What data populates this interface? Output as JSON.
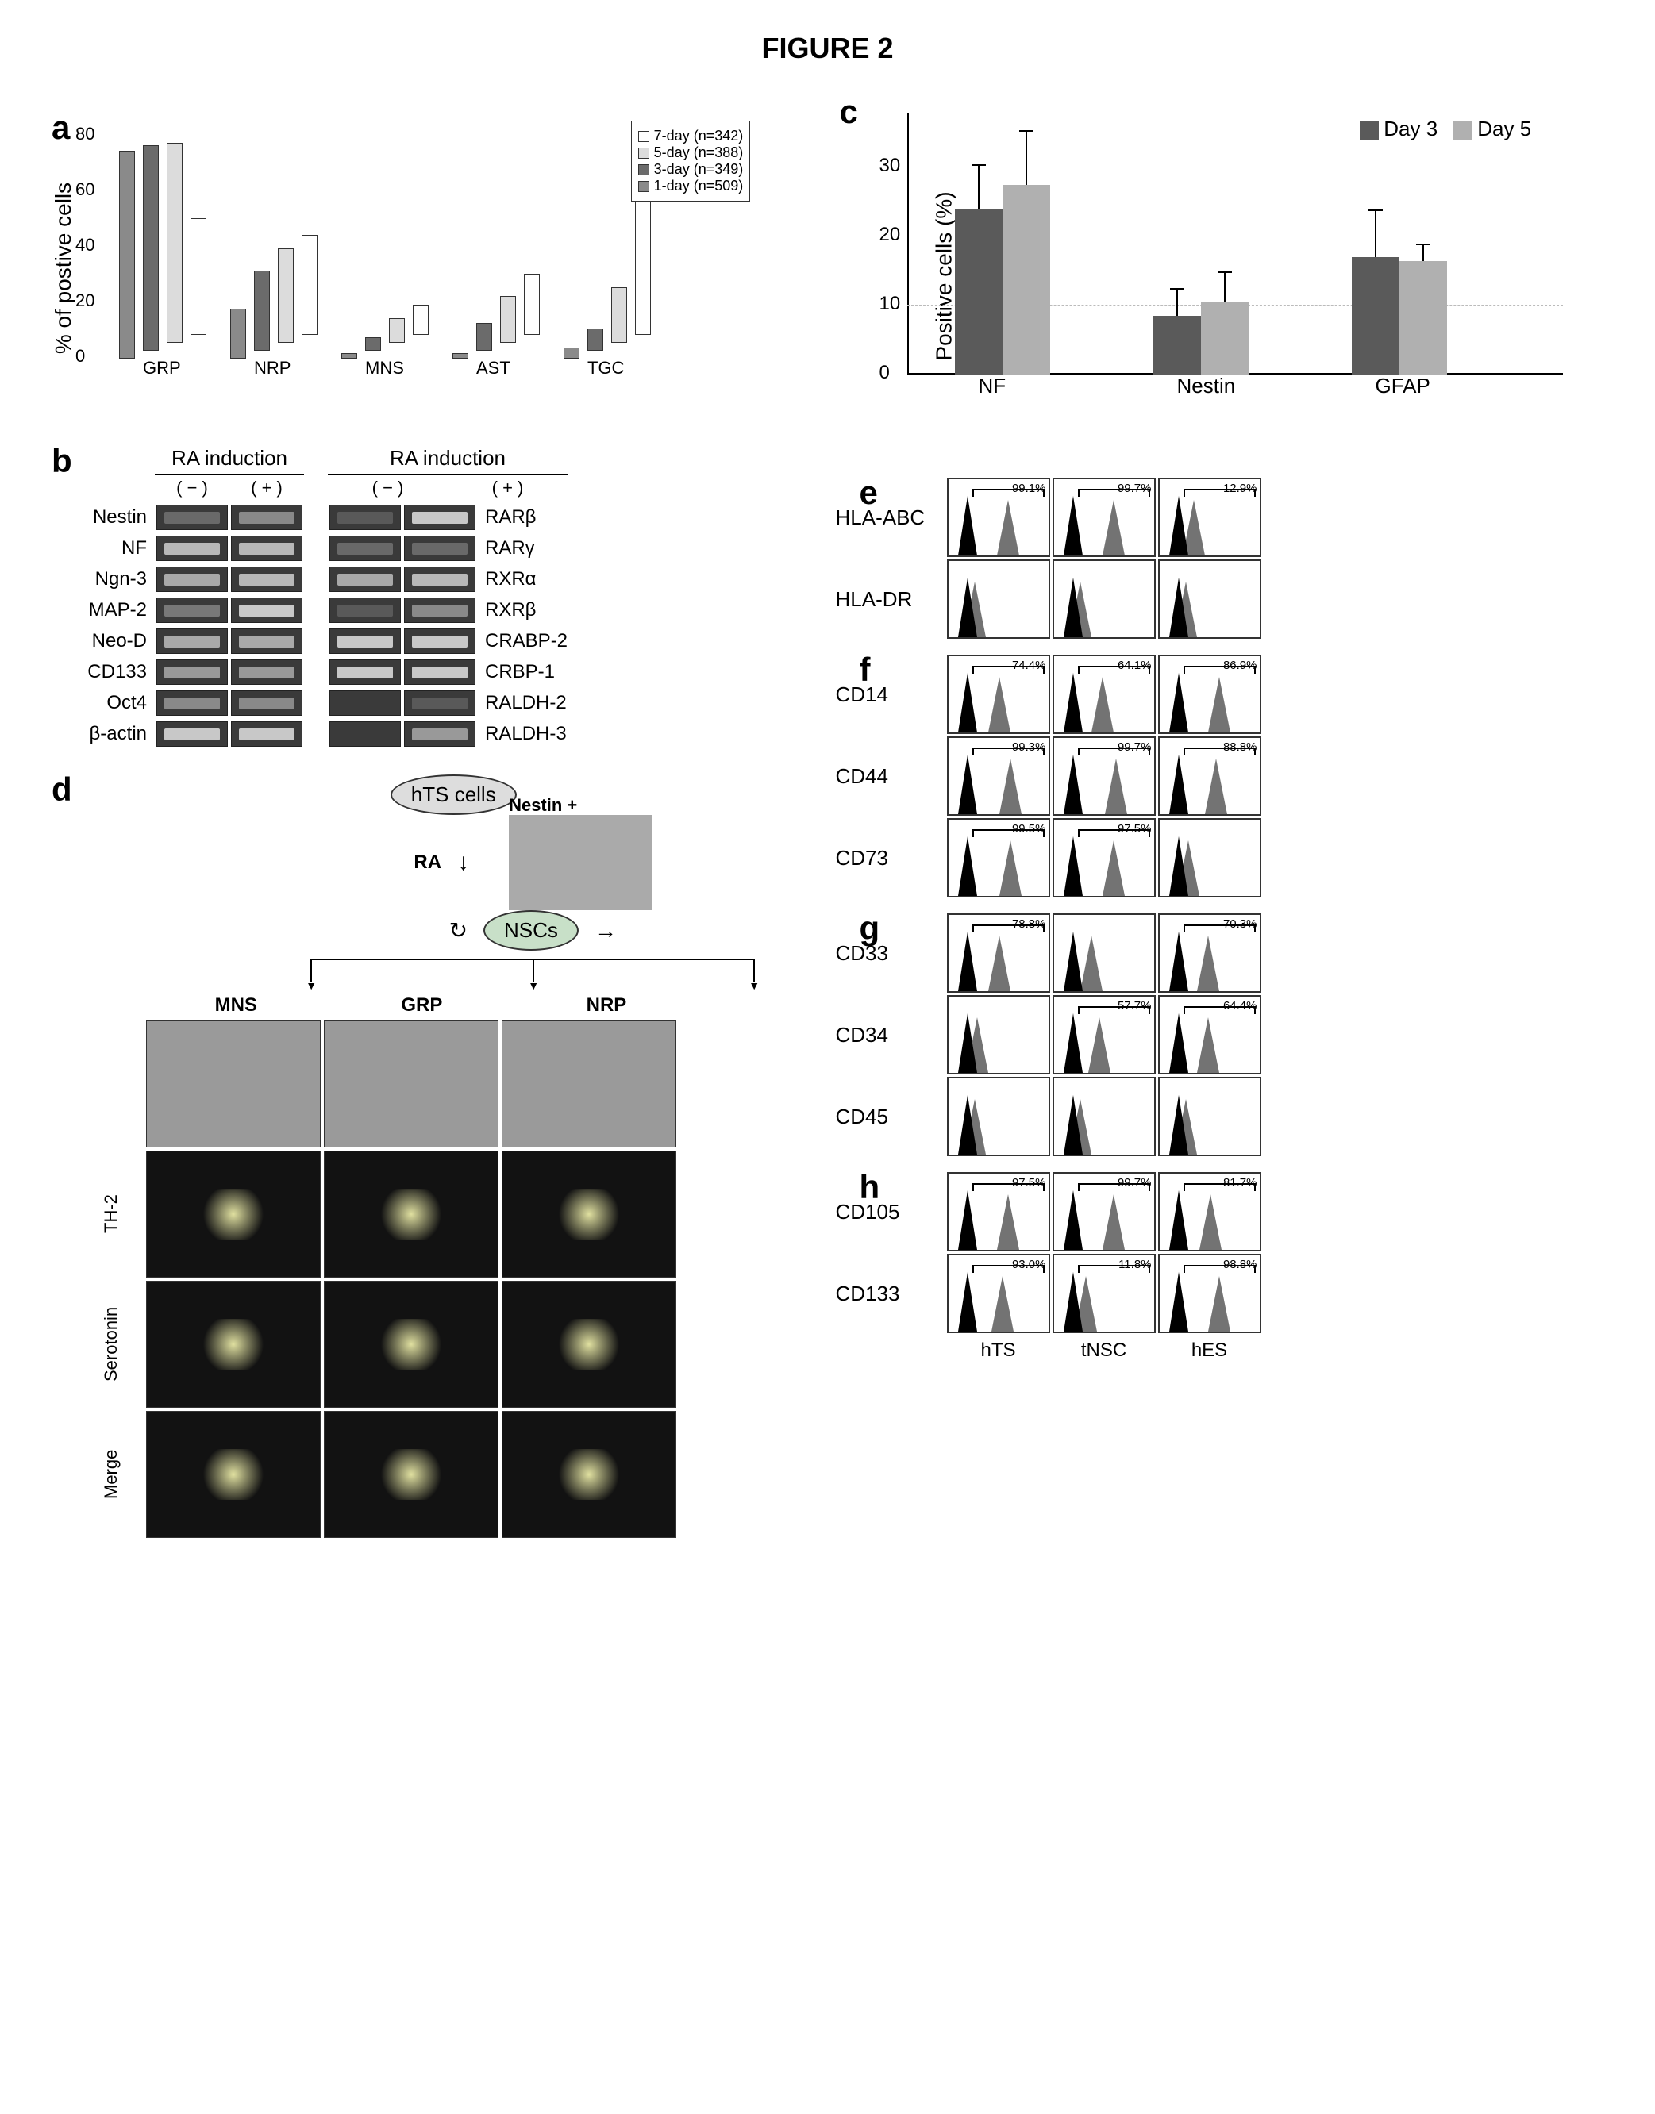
{
  "title": "FIGURE 2",
  "panel_a": {
    "type": "bar3d",
    "ylabel": "% of postive cells",
    "yticks": [
      0,
      20,
      40,
      60,
      80
    ],
    "ylim": [
      0,
      80
    ],
    "categories": [
      "GRP",
      "NRP",
      "MNS",
      "AST",
      "TGC"
    ],
    "legend": [
      {
        "label": "7-day (n=342)",
        "color": "#ffffff"
      },
      {
        "label": "5-day (n=388)",
        "color": "#dcdcdc"
      },
      {
        "label": "3-day (n=349)",
        "color": "#6b6b6b"
      },
      {
        "label": "1-day (n=509)",
        "color": "#8a8a8a"
      }
    ],
    "series": {
      "1-day": {
        "color": "#8a8a8a",
        "values": [
          75,
          18,
          2,
          2,
          4
        ]
      },
      "3-day": {
        "color": "#6b6b6b",
        "values": [
          74,
          29,
          5,
          10,
          8
        ]
      },
      "5-day": {
        "color": "#dcdcdc",
        "values": [
          72,
          34,
          9,
          17,
          20
        ]
      },
      "7-day": {
        "color": "#ffffff",
        "values": [
          42,
          36,
          11,
          22,
          58
        ]
      }
    }
  },
  "panel_b": {
    "header": "RA induction",
    "conditions": [
      "( − )",
      "( + )"
    ],
    "left_genes": [
      "Nestin",
      "NF",
      "Ngn-3",
      "MAP-2",
      "Neo-D",
      "CD133",
      "Oct4",
      "β-actin"
    ],
    "right_genes": [
      "RARβ",
      "RARγ",
      "RXRα",
      "RXRβ",
      "CRABP-2",
      "CRBP-1",
      "RALDH-2",
      "RALDH-3"
    ],
    "left_intensity": [
      [
        0.3,
        0.5
      ],
      [
        0.8,
        0.8
      ],
      [
        0.7,
        0.8
      ],
      [
        0.4,
        0.9
      ],
      [
        0.7,
        0.7
      ],
      [
        0.6,
        0.6
      ],
      [
        0.5,
        0.5
      ],
      [
        0.9,
        0.9
      ]
    ],
    "right_intensity": [
      [
        0.2,
        0.9
      ],
      [
        0.3,
        0.3
      ],
      [
        0.7,
        0.8
      ],
      [
        0.2,
        0.5
      ],
      [
        0.9,
        0.9
      ],
      [
        0.9,
        0.9
      ],
      [
        0.1,
        0.2
      ],
      [
        0.1,
        0.6
      ]
    ],
    "band_bg": "#3a3a3a",
    "band_signal": "#d8d8d8"
  },
  "panel_c": {
    "type": "bar",
    "ylabel": "Positive cells (%)",
    "yticks": [
      0,
      10,
      20,
      30
    ],
    "ylim": [
      0,
      38
    ],
    "categories": [
      "NF",
      "Nestin",
      "GFAP"
    ],
    "legend": [
      {
        "label": "Day 3",
        "color": "#5a5a5a"
      },
      {
        "label": "Day 5",
        "color": "#b0b0b0"
      }
    ],
    "values_day3": [
      24,
      8.5,
      17
    ],
    "values_day5": [
      27.5,
      10.5,
      16.5
    ],
    "err_day3": [
      6.5,
      4,
      7
    ],
    "err_day5": [
      8,
      4.5,
      2.5
    ],
    "grid_color": "#bbbbbb"
  },
  "panel_d": {
    "top_node": "hTS cells",
    "mid_node": "NSCs",
    "inducer": "RA",
    "nestin_label": "Nestin +",
    "lineages": [
      "MNS",
      "GRP",
      "NRP"
    ],
    "row_labels": [
      "",
      "TH-2",
      "Serotonin",
      "Merge"
    ],
    "phase_bg": "#9a9a9a",
    "fluor_bg": "#121212"
  },
  "flow": {
    "col_labels": [
      "hTS",
      "tNSC",
      "hES"
    ],
    "panels": {
      "e": {
        "rows": [
          {
            "label": "HLA-ABC",
            "pct": [
              "99.1%",
              "99.7%",
              "12.9%"
            ],
            "shift": [
              0.7,
              0.7,
              0.25
            ]
          },
          {
            "label": "HLA-DR",
            "pct": [
              "",
              "",
              ""
            ],
            "shift": [
              0.1,
              0.1,
              0.1
            ]
          }
        ]
      },
      "f": {
        "rows": [
          {
            "label": "CD14",
            "pct": [
              "74.4%",
              "64.1%",
              "86.9%"
            ],
            "shift": [
              0.55,
              0.5,
              0.7
            ]
          },
          {
            "label": "CD44",
            "pct": [
              "99.3%",
              "99.7%",
              "88.8%"
            ],
            "shift": [
              0.75,
              0.75,
              0.65
            ]
          },
          {
            "label": "CD73",
            "pct": [
              "99.5%",
              "97.5%",
              ""
            ],
            "shift": [
              0.75,
              0.7,
              0.15
            ]
          }
        ]
      },
      "g": {
        "rows": [
          {
            "label": "CD33",
            "pct": [
              "78.8%",
              "",
              "70.3%"
            ],
            "shift": [
              0.55,
              0.3,
              0.5
            ]
          },
          {
            "label": "CD34",
            "pct": [
              "",
              "57.7%",
              "64.4%"
            ],
            "shift": [
              0.15,
              0.45,
              0.5
            ]
          },
          {
            "label": "CD45",
            "pct": [
              "",
              "",
              ""
            ],
            "shift": [
              0.1,
              0.1,
              0.1
            ]
          }
        ]
      },
      "h": {
        "rows": [
          {
            "label": "CD105",
            "pct": [
              "97.5%",
              "99.7%",
              "81.7%"
            ],
            "shift": [
              0.7,
              0.7,
              0.55
            ]
          },
          {
            "label": "CD133",
            "pct": [
              "93.0%",
              "11.8%",
              "98.8%"
            ],
            "shift": [
              0.6,
              0.2,
              0.7
            ]
          }
        ]
      }
    },
    "peak_color": "#000000",
    "cell_border": "#333333"
  }
}
